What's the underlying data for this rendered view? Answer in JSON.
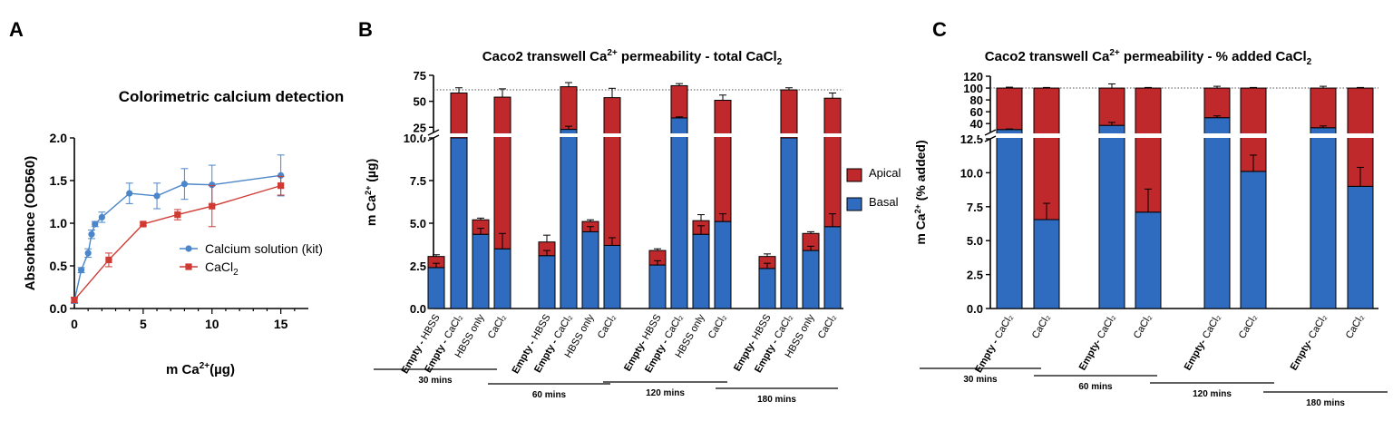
{
  "colors": {
    "blue": "#2f6bbf",
    "red": "#c0292b",
    "kit_line": "#4a86c9",
    "cacl_line": "#cf3a33"
  },
  "panel_letters": [
    "A",
    "B",
    "C"
  ],
  "chart_data": [
    {
      "panel": "A",
      "type": "line",
      "title": "Colorimetric calcium detection",
      "xlabel_main": "m Ca",
      "xlabel_sup": "2+",
      "xlabel_tail": "(µg)",
      "ylabel": "Absorbance (OD560)",
      "xlim": [
        0,
        17
      ],
      "ylim": [
        0,
        2.0
      ],
      "xticks": [
        "0",
        "5",
        "10",
        "15"
      ],
      "yticks": [
        "0.0",
        "0.5",
        "1.0",
        "1.5",
        "2.0"
      ],
      "legend_position": "right",
      "series": [
        {
          "name": "Calcium solution (kit)",
          "marker": "circle",
          "color": "#4a86c9",
          "x": [
            0,
            0.5,
            1.0,
            1.25,
            1.5,
            2.0,
            4.0,
            6.0,
            8.0,
            10.0,
            15.0
          ],
          "y": [
            0.09,
            0.45,
            0.65,
            0.87,
            0.99,
            1.07,
            1.35,
            1.32,
            1.46,
            1.45,
            1.56
          ],
          "err": [
            0.03,
            0.03,
            0.05,
            0.05,
            0.03,
            0.06,
            0.12,
            0.15,
            0.18,
            0.23,
            0.24
          ]
        },
        {
          "name": "CaCl",
          "name_sub": "2",
          "marker": "square",
          "color": "#cf3a33",
          "x": [
            0,
            2.5,
            5.0,
            7.5,
            10.0,
            15.0
          ],
          "y": [
            0.1,
            0.57,
            0.99,
            1.1,
            1.2,
            1.44
          ],
          "err": [
            0.03,
            0.08,
            0.02,
            0.06,
            0.24,
            0.11
          ]
        }
      ]
    },
    {
      "panel": "B",
      "type": "bar",
      "stacked": true,
      "broken_axis": true,
      "title": "Caco2 transwell Ca",
      "title_sup": "2+",
      "title_tail": " permeability - total CaCl",
      "title_sub": "2",
      "ylabel": "m Ca",
      "ylabel_sup": "2+",
      "ylabel_tail": " (µg)",
      "ylim_lower": [
        0,
        10
      ],
      "ylim_upper": [
        20,
        75
      ],
      "yticks_lower": [
        "0.0",
        "2.5",
        "5.0",
        "7.5",
        "10.0"
      ],
      "yticks_upper": [
        "25",
        "50",
        "75"
      ],
      "reference_line": 61,
      "legend": [
        "Apical",
        "Basal"
      ],
      "categories": [
        "Empty - HBSS",
        "Empty - CaCl₂",
        "HBSS only",
        "CaCl₂",
        "Empty - HBSS",
        "Empty - CaCl₂",
        "HBSS only",
        "CaCl₂",
        "Empty- HBSS",
        "Empty - CaCl₂",
        "HBSS only",
        "CaCl₂",
        "Empty- HBSS",
        "Empty - CaCl₂",
        "HBSS only",
        "CaCl₂"
      ],
      "groups": [
        "30 mins",
        "60 mins",
        "120 mins",
        "180 mins"
      ],
      "series": [
        {
          "name": "Basal",
          "values": [
            2.4,
            10,
            4.35,
            3.5,
            3.1,
            23,
            4.5,
            3.7,
            2.55,
            34,
            4.35,
            5.1,
            2.35,
            10,
            3.4,
            4.8
          ],
          "err": [
            0.25,
            0,
            0.35,
            0.9,
            0.3,
            3,
            0.3,
            0.45,
            0.25,
            1,
            0.5,
            0.45,
            0.3,
            0,
            0.25,
            0.75
          ]
        },
        {
          "name": "Apical",
          "values": [
            0.65,
            48,
            0.85,
            50.5,
            0.8,
            41,
            0.6,
            49.8,
            0.85,
            31,
            0.8,
            45.9,
            0.7,
            51,
            1.0,
            48.2
          ],
          "err": [
            0.1,
            5,
            0.1,
            8,
            0.4,
            4,
            0.1,
            9,
            0.1,
            2,
            0.35,
            5,
            0.15,
            2,
            0.1,
            5
          ]
        }
      ]
    },
    {
      "panel": "C",
      "type": "bar",
      "stacked": true,
      "broken_axis": true,
      "title": "Caco2 transwell Ca",
      "title_sup": "2+",
      "title_tail": " permeability - % added CaCl",
      "title_sub": "2",
      "ylabel": "m Ca",
      "ylabel_sup": "2+",
      "ylabel_tail": " (% added)",
      "ylim_lower": [
        0,
        12.5
      ],
      "ylim_upper": [
        25,
        120
      ],
      "yticks_lower": [
        "0.0",
        "2.5",
        "5.0",
        "7.5",
        "10.0",
        "12.5"
      ],
      "yticks_upper": [
        "40",
        "60",
        "80",
        "100",
        "120"
      ],
      "reference_line": 100,
      "categories": [
        "Empty - CaCl₂",
        "CaCl₂",
        "Empty- CaCl₂",
        "CaCl₂",
        "Empty- CaCl₂",
        "CaCl₂",
        "Empty- CaCl₂",
        "CaCl₂"
      ],
      "groups": [
        "30 mins",
        "60 mins",
        "120 mins",
        "180 mins"
      ],
      "series": [
        {
          "name": "Basal",
          "values": [
            30,
            6.55,
            37,
            7.1,
            50,
            10.1,
            33,
            9.0
          ],
          "err": [
            1,
            1.2,
            5,
            1.7,
            3,
            1.2,
            3,
            1.4
          ]
        },
        {
          "name": "Apical",
          "values": [
            70,
            93.45,
            63,
            92.9,
            50,
            89.9,
            67,
            91.0
          ],
          "err": [
            1.5,
            1,
            7,
            1,
            3,
            1,
            3,
            1
          ]
        }
      ]
    }
  ]
}
